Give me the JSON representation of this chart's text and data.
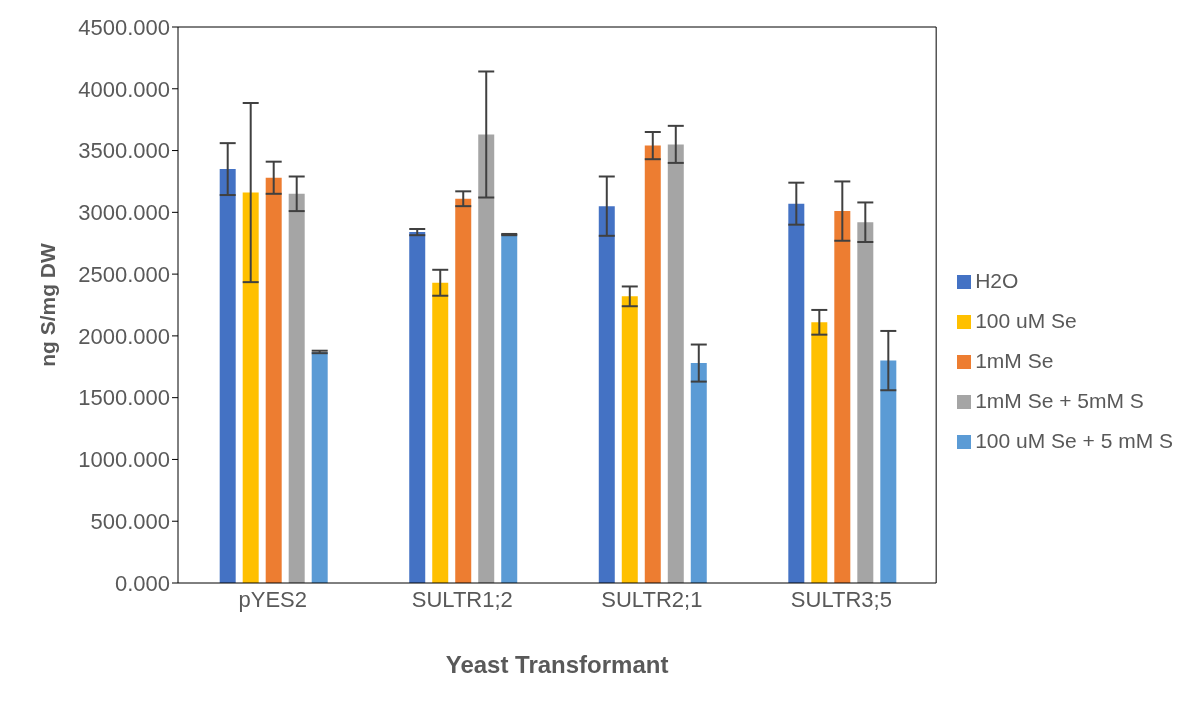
{
  "chart_data": {
    "type": "bar",
    "xlabel": "Yeast Transformant",
    "ylabel": "ng S/mg DW",
    "categories": [
      "pYES2",
      "SULTR1;2",
      "SULTR2;1",
      "SULTR3;5"
    ],
    "series": [
      {
        "name": "H2O",
        "color": "#4472c4",
        "values": [
          3350,
          2840,
          3050,
          3070
        ],
        "errors": [
          210,
          25,
          240,
          170
        ]
      },
      {
        "name": "100 uM Se",
        "color": "#ffc000",
        "values": [
          3160,
          2430,
          2320,
          2110
        ],
        "errors": [
          725,
          105,
          80,
          100
        ]
      },
      {
        "name": "1mM Se",
        "color": "#ed7d31",
        "values": [
          3280,
          3110,
          3540,
          3010
        ],
        "errors": [
          130,
          60,
          110,
          240
        ]
      },
      {
        "name": "1mM Se + 5mM S",
        "color": "#a5a5a5",
        "values": [
          3150,
          3630,
          3550,
          2920
        ],
        "errors": [
          140,
          510,
          150,
          160
        ]
      },
      {
        "name": "100 uM Se + 5 mM S",
        "color": "#5b9bd5",
        "values": [
          1870,
          2820,
          1780,
          1800
        ],
        "errors": [
          10,
          5,
          150,
          240
        ]
      }
    ],
    "ylim": [
      0,
      4500
    ],
    "yticks": [
      {
        "value": 0,
        "label": "0.000"
      },
      {
        "value": 500,
        "label": "500.000"
      },
      {
        "value": 1000,
        "label": "1000.000"
      },
      {
        "value": 1500,
        "label": "1500.000"
      },
      {
        "value": 2000,
        "label": "2000.000"
      },
      {
        "value": 2500,
        "label": "2500.000"
      },
      {
        "value": 3000,
        "label": "3000.000"
      },
      {
        "value": 3500,
        "label": "3500.000"
      },
      {
        "value": 4000,
        "label": "4000.000"
      },
      {
        "value": 4500,
        "label": "4500.000"
      }
    ],
    "grid": false,
    "legend": "right"
  }
}
